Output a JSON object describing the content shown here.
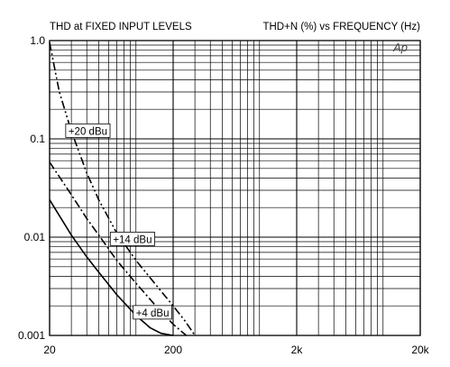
{
  "chart_data": {
    "type": "line",
    "title_left": "THD at FIXED INPUT LEVELS",
    "title_right": "THD+N (%) vs FREQUENCY (Hz)",
    "watermark": "Ap",
    "xlabel": "",
    "ylabel": "",
    "x_scale": "log",
    "y_scale": "log",
    "xlim": [
      20,
      20000
    ],
    "ylim": [
      0.001,
      1.0
    ],
    "grid": true,
    "x_tick_labels": [
      {
        "value": 20,
        "label": "20"
      },
      {
        "value": 200,
        "label": "200"
      },
      {
        "value": 2000,
        "label": "2k"
      },
      {
        "value": 20000,
        "label": "20k"
      }
    ],
    "y_tick_labels": [
      {
        "value": 1.0,
        "label": "1.0"
      },
      {
        "value": 0.1,
        "label": "0.1"
      },
      {
        "value": 0.01,
        "label": "0.01"
      },
      {
        "value": 0.001,
        "label": "0.001"
      }
    ],
    "series": [
      {
        "name": "+20 dBu",
        "style": "dash-dot-dot",
        "x": [
          20,
          24,
          30,
          40,
          50,
          70,
          100,
          150,
          200,
          250,
          300
        ],
        "y": [
          0.95,
          0.3,
          0.12,
          0.045,
          0.024,
          0.011,
          0.0058,
          0.0031,
          0.002,
          0.0014,
          0.001
        ],
        "label_at": {
          "x": 27,
          "y": 0.12
        }
      },
      {
        "name": "+14 dBu",
        "style": "dash-dot",
        "x": [
          20,
          30,
          40,
          50,
          70,
          100,
          150,
          200,
          255
        ],
        "y": [
          0.058,
          0.027,
          0.0155,
          0.0105,
          0.0058,
          0.0034,
          0.0019,
          0.0013,
          0.001
        ],
        "label_at": {
          "x": 62,
          "y": 0.0095
        }
      },
      {
        "name": "+4 dBu",
        "style": "solid",
        "x": [
          20,
          30,
          40,
          50,
          70,
          100,
          130,
          160,
          200
        ],
        "y": [
          0.024,
          0.0105,
          0.0063,
          0.0044,
          0.0026,
          0.0016,
          0.0012,
          0.00105,
          0.001
        ],
        "label_at": {
          "x": 95,
          "y": 0.0017
        }
      }
    ],
    "colors": {
      "line": "#000000",
      "grid": "#000000",
      "background": "#ffffff"
    }
  }
}
